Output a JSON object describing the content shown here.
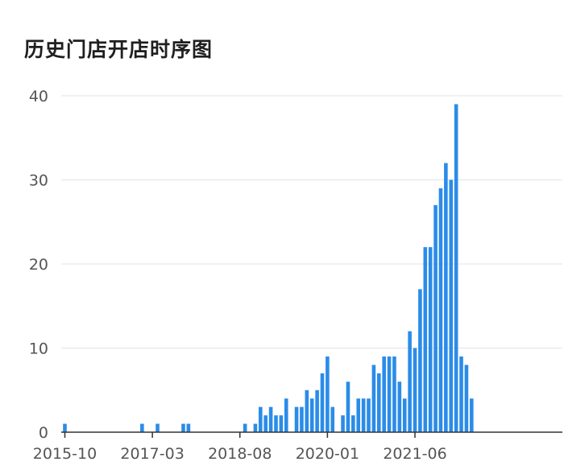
{
  "chart_data": {
    "type": "bar",
    "title": "历史门店开店时序图",
    "xlabel": "",
    "ylabel": "",
    "ylim": [
      0,
      40
    ],
    "yticks": [
      "0",
      "10",
      "20",
      "30",
      "40"
    ],
    "grid": true,
    "xtick_labels": [
      {
        "label": "2015-10",
        "month": "2015-10"
      },
      {
        "label": "2017-03",
        "month": "2017-03"
      },
      {
        "label": "2018-08",
        "month": "2018-08"
      },
      {
        "label": "2020-01",
        "month": "2020-01"
      },
      {
        "label": "2021-06",
        "month": "2021-06"
      }
    ],
    "categories": [
      "2015-10",
      "2015-11",
      "2015-12",
      "2016-01",
      "2016-02",
      "2016-03",
      "2016-04",
      "2016-05",
      "2016-06",
      "2016-07",
      "2016-08",
      "2016-09",
      "2016-10",
      "2016-11",
      "2016-12",
      "2017-01",
      "2017-02",
      "2017-03",
      "2017-04",
      "2017-05",
      "2017-06",
      "2017-07",
      "2017-08",
      "2017-09",
      "2017-10",
      "2017-11",
      "2017-12",
      "2018-01",
      "2018-02",
      "2018-03",
      "2018-04",
      "2018-05",
      "2018-06",
      "2018-07",
      "2018-08",
      "2018-09",
      "2018-10",
      "2018-11",
      "2018-12",
      "2019-01",
      "2019-02",
      "2019-03",
      "2019-04",
      "2019-05",
      "2019-06",
      "2019-07",
      "2019-08",
      "2019-09",
      "2019-10",
      "2019-11",
      "2019-12",
      "2020-01",
      "2020-02",
      "2020-03",
      "2020-04",
      "2020-05",
      "2020-06",
      "2020-07",
      "2020-08",
      "2020-09",
      "2020-10",
      "2020-11",
      "2020-12",
      "2021-01",
      "2021-02",
      "2021-03",
      "2021-04",
      "2021-05",
      "2021-06",
      "2021-07",
      "2021-08",
      "2021-09",
      "2021-10",
      "2021-11",
      "2021-12",
      "2022-01",
      "2022-02",
      "2022-03",
      "2022-04",
      "2022-05"
    ],
    "values": [
      1,
      0,
      0,
      0,
      0,
      0,
      0,
      0,
      0,
      0,
      0,
      0,
      0,
      0,
      0,
      1,
      0,
      0,
      1,
      0,
      0,
      0,
      0,
      1,
      1,
      0,
      0,
      0,
      0,
      0,
      0,
      0,
      0,
      0,
      0,
      1,
      0,
      1,
      3,
      2,
      3,
      2,
      2,
      4,
      0,
      3,
      3,
      5,
      4,
      5,
      7,
      9,
      3,
      0,
      2,
      6,
      2,
      4,
      4,
      4,
      8,
      7,
      9,
      9,
      9,
      6,
      4,
      12,
      10,
      17,
      22,
      22,
      27,
      29,
      32,
      30,
      39,
      9,
      8,
      4
    ],
    "bar_color": "#2b8ce8"
  }
}
